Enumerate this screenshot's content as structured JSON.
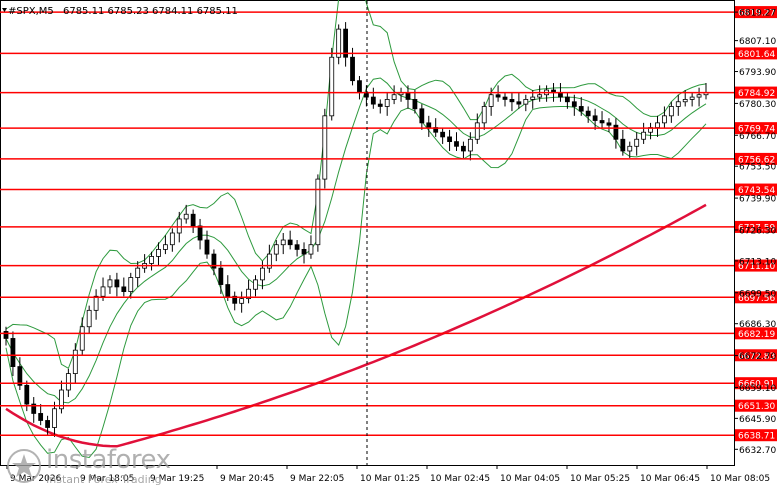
{
  "header": {
    "symbol": "#SPX,M5",
    "ohlc": "6785.11 6785.23 6784.11 6785.11"
  },
  "watermark": {
    "brand": "instaforex",
    "tagline": "Instant Forex Trading"
  },
  "colors": {
    "level_line": "#ff0000",
    "level_tag": "#ff0000",
    "ma_line": "#e0103a",
    "band_line": "#2e9a3e",
    "candle": "#000000",
    "grid_marker": "#000000"
  },
  "chart_data": {
    "type": "line",
    "title": "",
    "ylim": [
      6626,
      6824
    ],
    "y_ticks": [
      6819.27,
      6807.1,
      6793.9,
      6780.3,
      6766.7,
      6753.5,
      6739.9,
      6726.3,
      6713.1,
      6699.5,
      6686.3,
      6672.7,
      6659.1,
      6645.9,
      6632.7
    ],
    "x_ticks": [
      "9 Mar 2026",
      "9 Mar 18:05",
      "9 Mar 19:25",
      "9 Mar 20:45",
      "9 Mar 22:05",
      "10 Mar 01:25",
      "10 Mar 02:45",
      "10 Mar 04:05",
      "10 Mar 05:25",
      "10 Mar 06:45",
      "10 Mar 08:05"
    ],
    "levels": [
      6819.27,
      6801.64,
      6784.92,
      6769.74,
      6756.62,
      6743.54,
      6727.59,
      6711.1,
      6697.56,
      6682.19,
      6672.83,
      6660.91,
      6651.3,
      6638.71
    ],
    "series": [
      {
        "values": [
          6680,
          6668,
          6660,
          6652,
          6648,
          6645,
          6642,
          6650,
          6658,
          6665,
          6675,
          6685,
          6692,
          6698,
          6702,
          6705,
          6702,
          6700,
          6706,
          6710,
          6712,
          6715,
          6718,
          6720,
          6725,
          6731,
          6733,
          6728,
          6722,
          6716,
          6710,
          6703,
          6698,
          6695,
          6697,
          6701,
          6705,
          6710,
          6716,
          6720,
          6722,
          6720,
          6718,
          6716,
          6720,
          6748,
          6775,
          6800,
          6812,
          6800,
          6790,
          6785,
          6783,
          6780,
          6779,
          6782,
          6784,
          6785,
          6782,
          6778,
          6772,
          6770,
          6768,
          6766,
          6764,
          6762,
          6760,
          6765,
          6772,
          6779,
          6784,
          6783,
          6782,
          6781,
          6780,
          6782,
          6783,
          6784,
          6786,
          6785,
          6783,
          6781,
          6779,
          6777,
          6775,
          6773,
          6772,
          6771,
          6765,
          6760,
          6762,
          6765,
          6768,
          6770,
          6772,
          6775,
          6779,
          6781,
          6782,
          6783,
          6784,
          6785
        ]
      }
    ],
    "annotations": [
      "6819.27",
      "6801.64",
      "6784.92",
      "6769.74",
      "6756.62",
      "6743.54",
      "6727.59",
      "6711.10",
      "6697.56",
      "6682.19",
      "6672.83",
      "6660.91",
      "6651.30",
      "6638.71"
    ]
  }
}
